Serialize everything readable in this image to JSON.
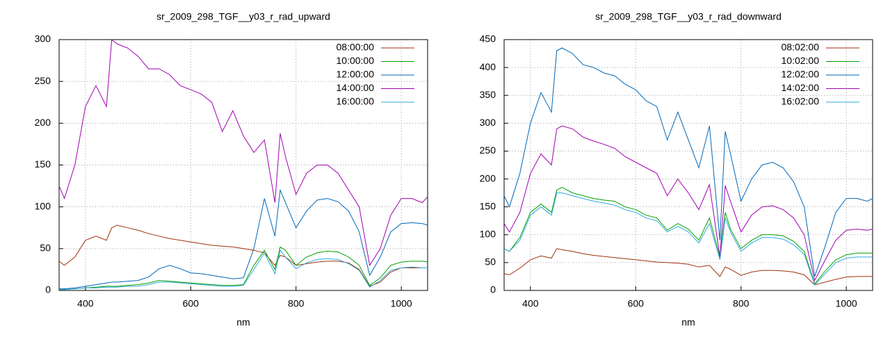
{
  "chart_data": [
    {
      "type": "line",
      "title": "sr_2009_298_TGF__y03_r_rad_upward",
      "x_label": "nm",
      "x": [
        350,
        360,
        380,
        400,
        420,
        440,
        450,
        460,
        480,
        500,
        520,
        540,
        560,
        580,
        600,
        620,
        640,
        660,
        680,
        700,
        720,
        740,
        760,
        770,
        780,
        800,
        820,
        840,
        860,
        880,
        900,
        920,
        940,
        960,
        980,
        1000,
        1020,
        1040,
        1050
      ],
      "xlim": [
        350,
        1050
      ],
      "xticks": [
        400,
        600,
        800,
        1000
      ],
      "ylim": [
        0,
        300
      ],
      "yticks": [
        0,
        50,
        100,
        150,
        200,
        250,
        300
      ],
      "grid": true,
      "legend": "top-right",
      "series": [
        {
          "name": "08:00:00",
          "color": "#a0300a",
          "values": [
            35,
            30,
            40,
            60,
            65,
            60,
            75,
            78,
            75,
            72,
            68,
            65,
            62,
            60,
            58,
            56,
            54,
            53,
            52,
            50,
            48,
            45,
            30,
            42,
            40,
            30,
            32,
            34,
            35,
            35,
            33,
            25,
            5,
            10,
            22,
            27,
            27,
            27,
            27
          ]
        },
        {
          "name": "10:00:00",
          "color": "#00a000",
          "values": [
            1,
            1,
            2,
            3,
            4,
            5,
            5,
            5,
            6,
            7,
            9,
            12,
            11,
            10,
            9,
            8,
            7,
            6,
            6,
            7,
            30,
            48,
            25,
            52,
            48,
            30,
            40,
            45,
            47,
            46,
            40,
            30,
            6,
            15,
            30,
            34,
            35,
            35,
            34
          ]
        },
        {
          "name": "12:00:00",
          "color": "#0066b8",
          "values": [
            2,
            2,
            3,
            5,
            7,
            9,
            10,
            10,
            11,
            12,
            16,
            26,
            30,
            26,
            21,
            20,
            18,
            16,
            14,
            15,
            50,
            110,
            65,
            120,
            105,
            75,
            95,
            108,
            110,
            106,
            95,
            70,
            18,
            40,
            70,
            80,
            81,
            80,
            78
          ]
        },
        {
          "name": "14:00:00",
          "color": "#a000b0",
          "values": [
            125,
            110,
            150,
            220,
            245,
            220,
            300,
            295,
            290,
            280,
            265,
            265,
            258,
            245,
            240,
            235,
            225,
            190,
            215,
            185,
            165,
            180,
            105,
            188,
            160,
            115,
            140,
            150,
            150,
            140,
            120,
            100,
            30,
            50,
            90,
            110,
            110,
            105,
            112
          ]
        },
        {
          "name": "16:00:00",
          "color": "#30a8e0",
          "values": [
            1,
            1,
            2,
            3,
            3,
            4,
            4,
            4,
            5,
            5,
            7,
            10,
            10,
            9,
            8,
            7,
            6,
            5,
            5,
            6,
            25,
            45,
            20,
            48,
            40,
            26,
            33,
            37,
            38,
            37,
            32,
            24,
            4,
            12,
            24,
            27,
            28,
            27,
            27
          ]
        }
      ]
    },
    {
      "type": "line",
      "title": "sr_2009_298_TGF__y03_r_rad_downward",
      "x_label": "nm",
      "x": [
        350,
        360,
        380,
        400,
        420,
        440,
        450,
        460,
        480,
        500,
        520,
        540,
        560,
        580,
        600,
        620,
        640,
        660,
        680,
        700,
        720,
        740,
        760,
        770,
        780,
        800,
        820,
        840,
        860,
        880,
        900,
        920,
        940,
        960,
        980,
        1000,
        1020,
        1040,
        1050
      ],
      "xlim": [
        350,
        1050
      ],
      "xticks": [
        400,
        600,
        800,
        1000
      ],
      "ylim": [
        0,
        450
      ],
      "yticks": [
        0,
        50,
        100,
        150,
        200,
        250,
        300,
        350,
        400,
        450
      ],
      "grid": true,
      "legend": "top-right",
      "series": [
        {
          "name": "08:02:00",
          "color": "#a0300a",
          "values": [
            30,
            28,
            40,
            55,
            62,
            58,
            75,
            73,
            70,
            66,
            63,
            61,
            59,
            57,
            55,
            53,
            51,
            50,
            49,
            47,
            42,
            45,
            25,
            42,
            38,
            27,
            33,
            36,
            36,
            35,
            33,
            28,
            10,
            15,
            20,
            24,
            25,
            25,
            25
          ]
        },
        {
          "name": "10:02:00",
          "color": "#00a000",
          "values": [
            75,
            70,
            95,
            140,
            155,
            140,
            180,
            185,
            175,
            170,
            165,
            162,
            160,
            150,
            145,
            135,
            130,
            108,
            120,
            110,
            90,
            130,
            60,
            140,
            110,
            75,
            90,
            100,
            100,
            98,
            88,
            70,
            12,
            35,
            55,
            64,
            67,
            67,
            67
          ]
        },
        {
          "name": "12:02:00",
          "color": "#0066b8",
          "values": [
            170,
            150,
            210,
            300,
            355,
            320,
            430,
            435,
            425,
            405,
            400,
            390,
            385,
            370,
            360,
            340,
            330,
            270,
            320,
            270,
            220,
            295,
            90,
            285,
            245,
            160,
            200,
            225,
            230,
            220,
            195,
            150,
            25,
            80,
            140,
            165,
            165,
            160,
            165
          ]
        },
        {
          "name": "14:02:00",
          "color": "#a000b0",
          "values": [
            120,
            105,
            140,
            210,
            245,
            225,
            290,
            295,
            290,
            275,
            268,
            262,
            255,
            240,
            230,
            220,
            210,
            170,
            200,
            175,
            145,
            190,
            60,
            188,
            160,
            105,
            135,
            150,
            152,
            145,
            130,
            100,
            18,
            55,
            90,
            108,
            110,
            108,
            110
          ]
        },
        {
          "name": "16:02:00",
          "color": "#30a8e0",
          "values": [
            75,
            70,
            90,
            135,
            150,
            135,
            175,
            175,
            170,
            165,
            160,
            157,
            153,
            145,
            140,
            130,
            125,
            105,
            115,
            105,
            85,
            120,
            55,
            130,
            105,
            70,
            85,
            95,
            95,
            92,
            82,
            65,
            10,
            30,
            50,
            58,
            60,
            60,
            60
          ]
        }
      ]
    }
  ]
}
